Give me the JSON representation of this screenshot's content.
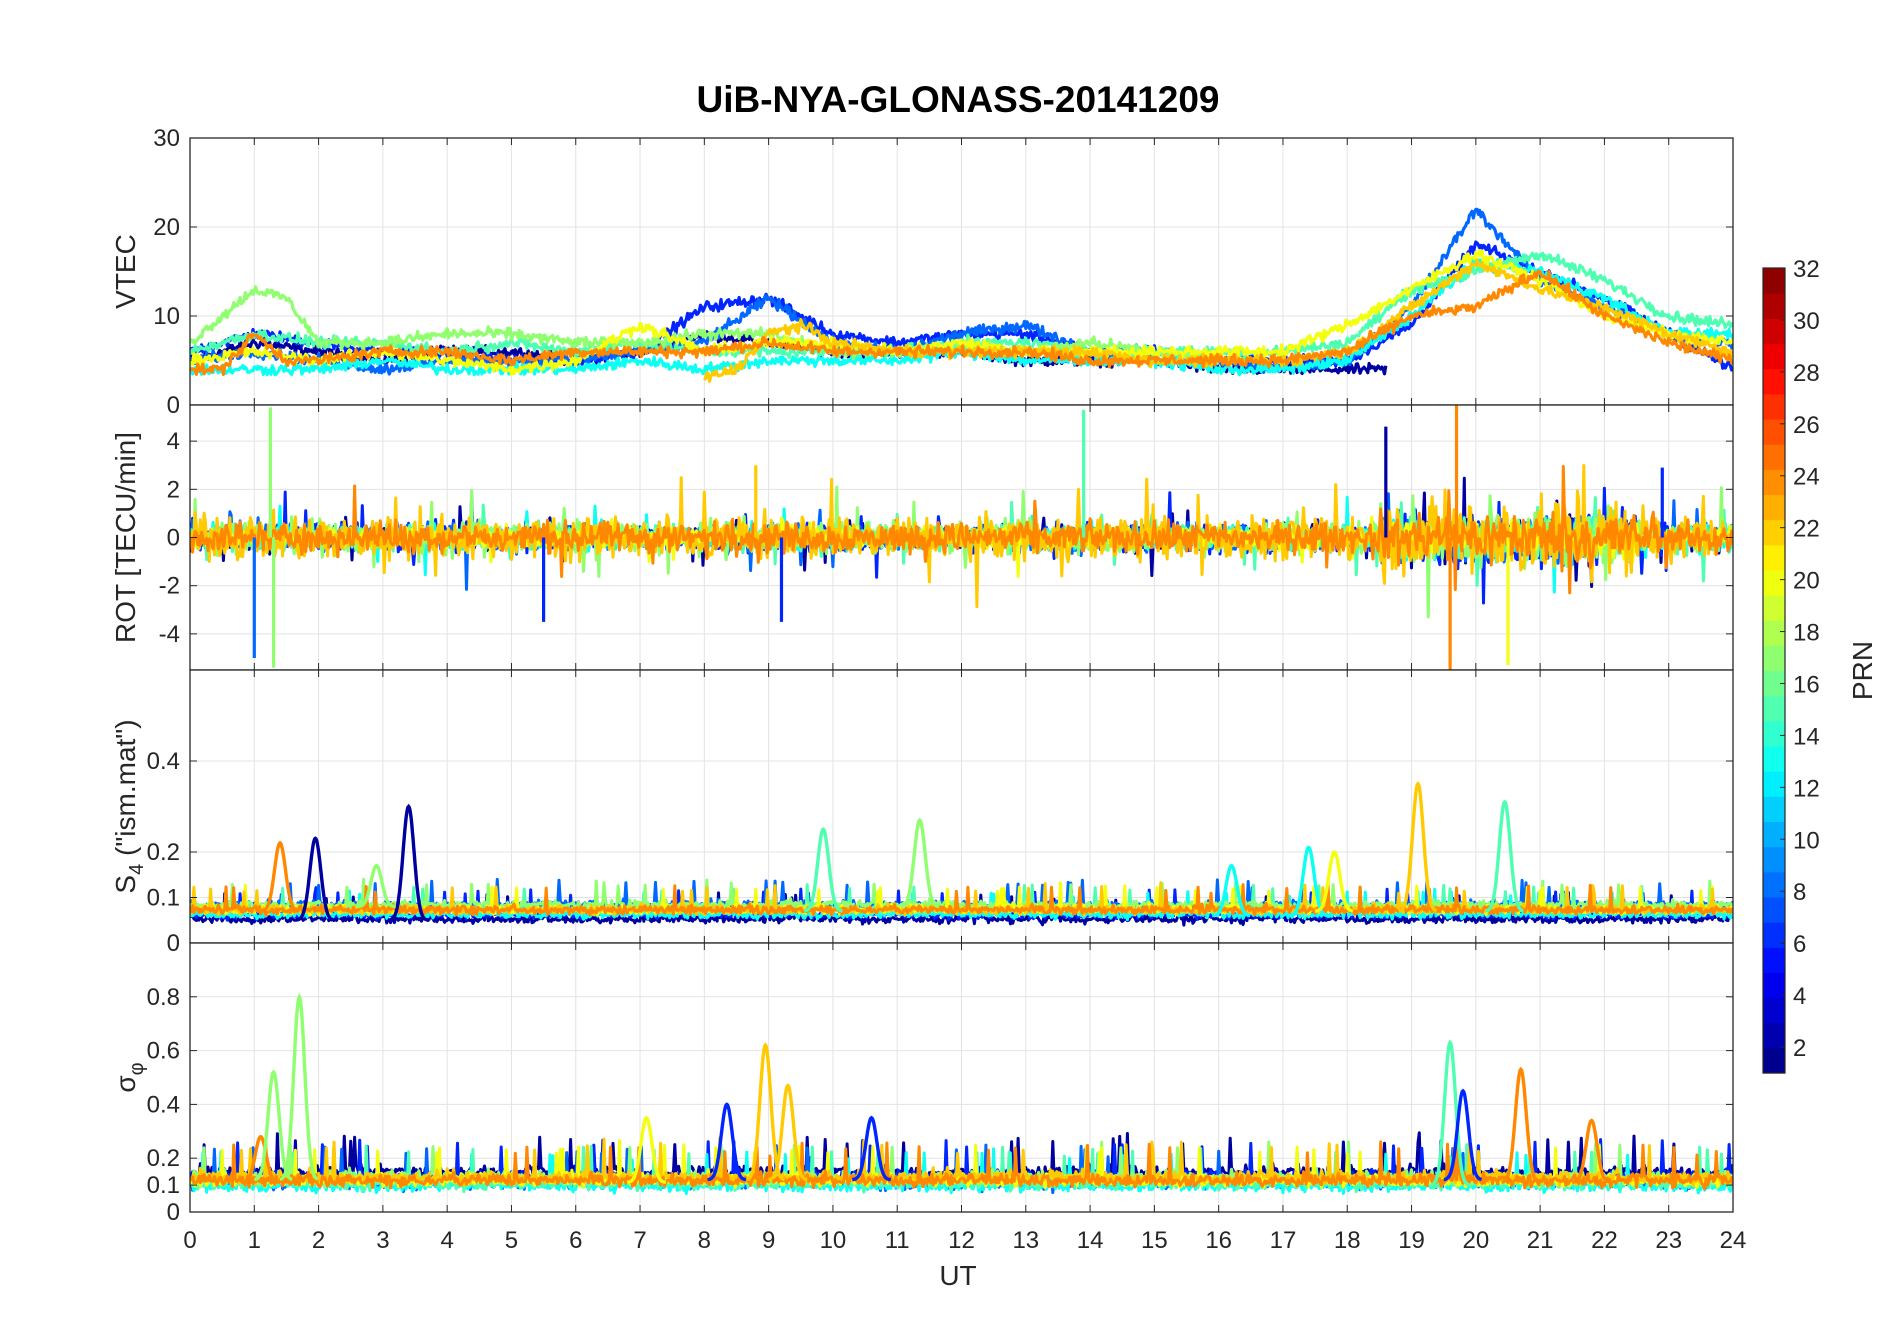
{
  "chart_data": [
    {
      "type": "line",
      "title": "UiB-NYA-GLONASS-20141209",
      "ylabel": "VTEC",
      "xlim": [
        0,
        24
      ],
      "ylim": [
        0,
        30
      ],
      "yticks": [
        0,
        10,
        20,
        30
      ],
      "grid": true,
      "color_by": "PRN",
      "series": [
        {
          "prn": 2,
          "x": [
            0,
            1,
            2,
            3,
            4,
            5,
            6,
            7,
            8,
            9,
            10,
            11,
            12,
            13,
            14,
            15,
            16,
            17,
            18,
            18.6
          ],
          "y": [
            5,
            7,
            6,
            5,
            6,
            6,
            5,
            6,
            8,
            7,
            6,
            6,
            6,
            5,
            5,
            5,
            4,
            4,
            4,
            4
          ]
        },
        {
          "prn": 6,
          "x": [
            0,
            1,
            2,
            3,
            4,
            5,
            6,
            7,
            8,
            9,
            10,
            11,
            12,
            13,
            14,
            15,
            16,
            17,
            18,
            19,
            20,
            21,
            22,
            23,
            24
          ],
          "y": [
            6,
            8,
            7,
            6,
            6,
            5,
            5,
            6,
            11,
            12,
            8,
            7,
            8,
            8,
            6,
            6,
            5,
            5,
            5,
            9,
            18,
            15,
            12,
            8,
            4
          ]
        },
        {
          "prn": 8,
          "x": [
            0,
            1,
            2,
            3,
            4,
            5,
            6,
            7,
            8,
            9,
            10,
            11,
            12,
            13,
            14,
            15,
            16,
            17,
            18,
            19,
            20,
            21,
            22,
            23,
            24
          ],
          "y": [
            5,
            6,
            5,
            4,
            5,
            5,
            5,
            6,
            7,
            12,
            7,
            6,
            8,
            9,
            6,
            6,
            5,
            4,
            5,
            11,
            22,
            14,
            11,
            8,
            7
          ]
        },
        {
          "prn": 13,
          "x": [
            0,
            1,
            2,
            3,
            4,
            5,
            6,
            7,
            8,
            9,
            10,
            11,
            12,
            13,
            14,
            15,
            16,
            17,
            18,
            19,
            20,
            21,
            22,
            23,
            24
          ],
          "y": [
            4,
            4,
            4,
            5,
            4,
            4,
            4,
            5,
            4,
            5,
            5,
            5,
            6,
            5,
            5,
            5,
            4,
            4,
            5,
            10,
            16,
            15,
            12,
            8,
            8
          ]
        },
        {
          "prn": 15,
          "x": [
            0,
            1,
            2,
            3,
            4,
            5,
            6,
            7,
            8,
            9,
            10,
            11,
            12,
            13,
            14,
            15,
            16,
            17,
            18,
            19,
            20,
            21,
            22,
            23,
            24
          ],
          "y": [
            6,
            8,
            7,
            7,
            6,
            7,
            6,
            7,
            6,
            6,
            6,
            6,
            7,
            7,
            6,
            6,
            6,
            6,
            7,
            13,
            15,
            17,
            14,
            10,
            9
          ]
        },
        {
          "prn": 17,
          "x": [
            0,
            0.5,
            1,
            1.5,
            2,
            3,
            4,
            5,
            6,
            7,
            8,
            9,
            10,
            11,
            12,
            13,
            14,
            15,
            16
          ],
          "y": [
            7,
            10,
            13,
            12,
            7,
            7,
            8,
            8,
            7,
            7,
            8,
            8,
            6,
            6,
            7,
            6,
            7,
            6,
            5
          ]
        },
        {
          "prn": 20,
          "x": [
            0,
            1,
            2,
            3,
            4,
            5,
            6,
            7,
            8,
            9,
            10,
            11,
            12,
            13,
            14,
            15,
            16,
            17,
            18,
            19,
            20,
            21,
            22,
            23,
            24
          ],
          "y": [
            5,
            6,
            5,
            6,
            5,
            4,
            5,
            9,
            6,
            7,
            7,
            6,
            7,
            6,
            6,
            6,
            6,
            6,
            9,
            13,
            17,
            14,
            10,
            8,
            7
          ]
        },
        {
          "prn": 22,
          "x": [
            8,
            8.5,
            9,
            9.5,
            10,
            11,
            12,
            13,
            14,
            15,
            16,
            17,
            18,
            19,
            20,
            21,
            22,
            23,
            24
          ],
          "y": [
            3,
            4,
            8,
            9,
            7,
            6,
            6,
            6,
            6,
            5,
            5,
            5,
            6,
            11,
            16,
            13,
            11,
            8,
            6
          ]
        },
        {
          "prn": 24,
          "x": [
            0,
            0.5,
            1,
            1.5,
            2,
            3,
            4,
            5,
            6,
            7,
            8,
            9,
            10,
            11,
            12,
            13,
            14,
            15,
            16,
            17,
            18,
            19,
            20,
            21,
            22,
            23,
            24
          ],
          "y": [
            4,
            4,
            8,
            5,
            5,
            6,
            6,
            5,
            6,
            6,
            6,
            7,
            6,
            6,
            6,
            6,
            5,
            5,
            5,
            5,
            6,
            10,
            11,
            15,
            10,
            7,
            5
          ]
        }
      ]
    },
    {
      "type": "line",
      "ylabel": "ROT [TECU/min]",
      "xlim": [
        0,
        24
      ],
      "ylim": [
        -5.5,
        5.5
      ],
      "yticks": [
        -4,
        -2,
        0,
        2,
        4
      ],
      "grid": true,
      "color_by": "PRN",
      "noise_band": {
        "prn": [
          2,
          6,
          8,
          13,
          15,
          17,
          20,
          22,
          24
        ],
        "typical_amplitude": [
          0.7,
          0.9,
          0.8,
          0.7,
          0.8,
          1.0,
          0.6,
          1.3,
          0.9
        ]
      },
      "spikes": [
        {
          "prn": 8,
          "x": 1.0,
          "y": -5.0
        },
        {
          "prn": 17,
          "x": 1.25,
          "y": 5.4
        },
        {
          "prn": 17,
          "x": 1.3,
          "y": -5.4
        },
        {
          "prn": 15,
          "x": 13.9,
          "y": 5.3
        },
        {
          "prn": 6,
          "x": 9.2,
          "y": -3.5
        },
        {
          "prn": 24,
          "x": 19.7,
          "y": 5.5
        },
        {
          "prn": 24,
          "x": 19.6,
          "y": -5.5
        },
        {
          "prn": 20,
          "x": 20.5,
          "y": -5.3
        },
        {
          "prn": 2,
          "x": 18.6,
          "y": 4.6
        },
        {
          "prn": 6,
          "x": 22.9,
          "y": 2.9
        },
        {
          "prn": 22,
          "x": 8.8,
          "y": 3.0
        },
        {
          "prn": 6,
          "x": 5.5,
          "y": -3.5
        }
      ]
    },
    {
      "type": "line",
      "ylabel": "S4 (\"ism.mat\")",
      "ylabel_main": "S",
      "ylabel_sub": "4",
      "ylabel_rest": " (\"ism.mat\")",
      "xlim": [
        0,
        24
      ],
      "ylim": [
        0,
        0.6
      ],
      "yticks": [
        0,
        0.1,
        0.2,
        0.4
      ],
      "grid": true,
      "color_by": "PRN",
      "baseline": {
        "prn": [
          2,
          6,
          8,
          13,
          15,
          17,
          20,
          22,
          24
        ],
        "level": [
          0.05,
          0.06,
          0.08,
          0.06,
          0.07,
          0.08,
          0.07,
          0.07,
          0.07
        ]
      },
      "peaks": [
        {
          "prn": 24,
          "x": 1.4,
          "y": 0.22
        },
        {
          "prn": 2,
          "x": 1.95,
          "y": 0.23
        },
        {
          "prn": 2,
          "x": 3.4,
          "y": 0.3
        },
        {
          "prn": 17,
          "x": 2.9,
          "y": 0.17
        },
        {
          "prn": 15,
          "x": 9.85,
          "y": 0.25
        },
        {
          "prn": 17,
          "x": 11.35,
          "y": 0.27
        },
        {
          "prn": 13,
          "x": 16.2,
          "y": 0.17
        },
        {
          "prn": 13,
          "x": 17.4,
          "y": 0.21
        },
        {
          "prn": 20,
          "x": 17.8,
          "y": 0.2
        },
        {
          "prn": 22,
          "x": 19.1,
          "y": 0.35
        },
        {
          "prn": 15,
          "x": 20.45,
          "y": 0.31
        }
      ]
    },
    {
      "type": "line",
      "ylabel": "σφ",
      "ylabel_main": "σ",
      "ylabel_sub": "φ",
      "xlabel": "UT",
      "xlim": [
        0,
        24
      ],
      "ylim": [
        0,
        1.0
      ],
      "yticks": [
        0,
        0.1,
        0.2,
        0.4,
        0.6,
        0.8
      ],
      "xticks": [
        0,
        1,
        2,
        3,
        4,
        5,
        6,
        7,
        8,
        9,
        10,
        11,
        12,
        13,
        14,
        15,
        16,
        17,
        18,
        19,
        20,
        21,
        22,
        23,
        24
      ],
      "grid": true,
      "color_by": "PRN",
      "baseline": {
        "prn": [
          2,
          6,
          8,
          13,
          15,
          17,
          20,
          22,
          24
        ],
        "level": [
          0.14,
          0.12,
          0.1,
          0.09,
          0.1,
          0.12,
          0.11,
          0.12,
          0.11
        ]
      },
      "peaks": [
        {
          "prn": 24,
          "x": 1.1,
          "y": 0.28
        },
        {
          "prn": 17,
          "x": 1.3,
          "y": 0.52
        },
        {
          "prn": 17,
          "x": 1.7,
          "y": 0.8
        },
        {
          "prn": 20,
          "x": 7.1,
          "y": 0.35
        },
        {
          "prn": 22,
          "x": 8.95,
          "y": 0.62
        },
        {
          "prn": 22,
          "x": 9.3,
          "y": 0.47
        },
        {
          "prn": 6,
          "x": 8.35,
          "y": 0.4
        },
        {
          "prn": 6,
          "x": 10.6,
          "y": 0.35
        },
        {
          "prn": 15,
          "x": 19.6,
          "y": 0.63
        },
        {
          "prn": 6,
          "x": 19.8,
          "y": 0.45
        },
        {
          "prn": 24,
          "x": 20.7,
          "y": 0.53
        },
        {
          "prn": 24,
          "x": 21.8,
          "y": 0.34
        }
      ]
    }
  ],
  "colorbar": {
    "label": "PRN",
    "range": [
      1,
      32
    ],
    "ticks": [
      2,
      4,
      6,
      8,
      10,
      12,
      14,
      16,
      18,
      20,
      22,
      24,
      26,
      28,
      30,
      32
    ],
    "colormap": "jet"
  }
}
